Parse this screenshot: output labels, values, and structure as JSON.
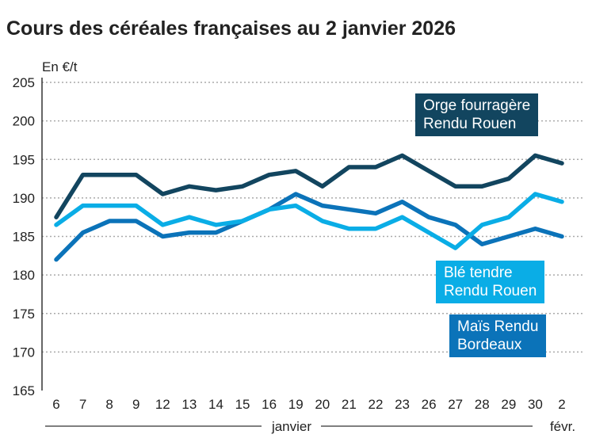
{
  "title": "Cours des céréales françaises au 2 janvier 2026",
  "chart_data": {
    "type": "line",
    "title": "Cours des céréales françaises au 2 janvier 2026",
    "ylabel": "En €/t",
    "ylim": [
      165,
      205
    ],
    "yticks": [
      165,
      170,
      175,
      180,
      185,
      190,
      195,
      200,
      205
    ],
    "grid": true,
    "categories": [
      "6",
      "7",
      "8",
      "9",
      "12",
      "13",
      "14",
      "15",
      "16",
      "19",
      "20",
      "21",
      "22",
      "23",
      "26",
      "27",
      "28",
      "29",
      "30",
      "2"
    ],
    "month_labels": [
      "janvier",
      "févr."
    ],
    "series": [
      {
        "name": "Orge fourragère Rendu Rouen",
        "color": "#12455f",
        "values": [
          187.5,
          193,
          193,
          193,
          190.5,
          191.5,
          191,
          191.5,
          193,
          193.5,
          191.5,
          194,
          194,
          195.5,
          193.5,
          191.5,
          191.5,
          192.5,
          195.5,
          194.5
        ]
      },
      {
        "name": "Blé tendre Rendu Rouen",
        "color": "#0aade6",
        "values": [
          186.5,
          189,
          189,
          189,
          186.5,
          187.5,
          186.5,
          187,
          188.5,
          189,
          187,
          186,
          186,
          187.5,
          185.5,
          183.5,
          186.5,
          187.5,
          190.5,
          189.5
        ]
      },
      {
        "name": "Maïs Rendu Bordeaux",
        "color": "#0b73b9",
        "values": [
          182,
          185.5,
          187,
          187,
          185,
          185.5,
          185.5,
          187,
          188.5,
          190.5,
          189,
          188.5,
          188,
          189.5,
          187.5,
          186.5,
          184,
          185,
          186,
          185
        ]
      }
    ],
    "legend_labels": [
      [
        "Orge fourragère",
        "Rendu Rouen"
      ],
      [
        "Blé tendre",
        "Rendu Rouen"
      ],
      [
        "Maïs Rendu",
        "Bordeaux"
      ]
    ]
  }
}
